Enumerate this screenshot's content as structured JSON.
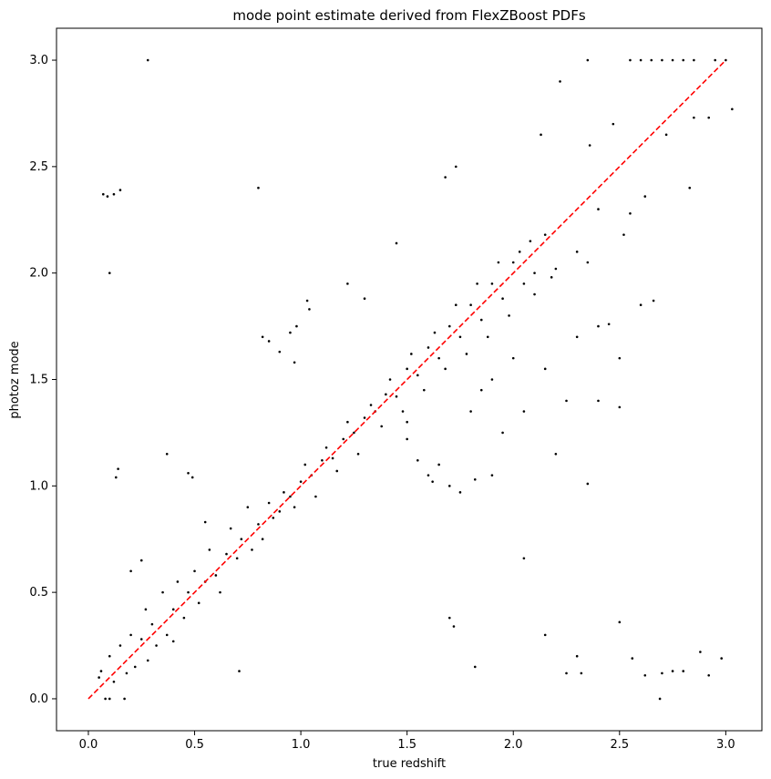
{
  "chart_data": {
    "type": "scatter",
    "title": "mode point estimate derived from FlexZBoost PDFs",
    "x_label": "true redshift",
    "y_label": "photoz mode",
    "color": "#000000",
    "x": [
      0.28,
      0.07,
      0.09,
      0.12,
      0.15,
      0.1,
      0.13,
      0.14,
      0.37,
      0.47,
      0.49,
      0.8,
      0.82,
      0.85,
      0.9,
      0.95,
      0.98,
      0.97,
      1.3,
      1.22,
      1.03,
      1.04,
      1.45,
      1.73,
      1.68,
      1.5,
      1.55,
      1.6,
      1.65,
      1.7,
      1.75,
      1.62,
      1.82,
      1.9,
      1.5,
      2.05,
      1.7,
      1.72,
      1.82,
      2.15,
      2.25,
      2.3,
      2.32,
      2.5,
      2.56,
      2.62,
      2.7,
      2.75,
      2.8,
      2.88,
      2.92,
      2.98,
      2.69,
      2.35,
      2.55,
      2.6,
      2.65,
      2.7,
      2.75,
      2.8,
      2.85,
      2.95,
      3.0,
      2.22,
      2.36,
      2.13,
      2.47,
      3.03,
      2.92,
      2.85,
      2.72,
      2.83,
      2.62,
      2.52,
      2.6,
      2.66,
      2.45,
      2.4,
      2.3,
      2.5,
      2.4,
      2.5,
      2.2,
      2.35,
      2.25,
      2.15,
      2.1,
      2.0,
      1.9,
      1.8,
      2.05,
      1.95,
      1.85,
      2.2,
      2.3,
      2.4,
      2.55,
      2.35,
      0.05,
      0.08,
      0.1,
      0.17,
      0.06,
      0.1,
      0.12,
      0.15,
      0.18,
      0.2,
      0.22,
      0.25,
      0.27,
      0.28,
      0.3,
      0.32,
      0.35,
      0.37,
      0.4,
      0.42,
      0.45,
      0.47,
      0.5,
      0.52,
      0.55,
      0.57,
      0.6,
      0.62,
      0.65,
      0.67,
      0.7,
      0.72,
      0.75,
      0.77,
      0.8,
      0.82,
      0.85,
      0.87,
      0.9,
      0.92,
      0.95,
      0.97,
      1.0,
      1.02,
      1.05,
      1.07,
      1.1,
      1.12,
      1.15,
      1.17,
      1.2,
      1.22,
      1.25,
      1.27,
      1.3,
      1.33,
      1.35,
      1.38,
      1.4,
      1.42,
      1.45,
      1.48,
      1.5,
      1.52,
      1.55,
      1.58,
      1.6,
      1.63,
      1.65,
      1.68,
      1.7,
      1.73,
      1.75,
      1.78,
      1.8,
      1.83,
      1.85,
      1.88,
      1.9,
      1.93,
      1.95,
      1.98,
      2.0,
      2.03,
      2.05,
      2.08,
      2.1,
      2.15,
      2.18,
      0.4,
      0.55,
      0.71,
      0.25,
      0.2
    ],
    "values": [
      3.0,
      2.37,
      2.36,
      2.37,
      2.39,
      2.0,
      1.04,
      1.08,
      1.15,
      1.06,
      1.04,
      2.4,
      1.7,
      1.68,
      1.63,
      1.72,
      1.75,
      1.58,
      1.88,
      1.95,
      1.87,
      1.83,
      2.14,
      2.5,
      2.45,
      1.3,
      1.12,
      1.05,
      1.1,
      1.0,
      0.97,
      1.02,
      1.03,
      1.05,
      1.22,
      0.66,
      0.38,
      0.34,
      0.15,
      0.3,
      0.12,
      0.2,
      0.12,
      0.36,
      0.19,
      0.11,
      0.12,
      0.13,
      0.13,
      0.22,
      0.11,
      0.19,
      0.0,
      3.0,
      3.0,
      3.0,
      3.0,
      3.0,
      3.0,
      3.0,
      3.0,
      3.0,
      3.0,
      2.9,
      2.6,
      2.65,
      2.7,
      2.77,
      2.73,
      2.73,
      2.65,
      2.4,
      2.36,
      2.18,
      1.85,
      1.87,
      1.76,
      1.75,
      1.7,
      1.6,
      1.4,
      1.37,
      1.15,
      1.01,
      1.4,
      1.55,
      1.9,
      1.6,
      1.5,
      1.35,
      1.35,
      1.25,
      1.45,
      2.02,
      2.1,
      2.3,
      2.28,
      2.05,
      0.1,
      0.0,
      0.0,
      0.0,
      0.13,
      0.2,
      0.08,
      0.25,
      0.12,
      0.3,
      0.15,
      0.28,
      0.42,
      0.18,
      0.35,
      0.25,
      0.5,
      0.3,
      0.42,
      0.55,
      0.38,
      0.5,
      0.6,
      0.45,
      0.55,
      0.7,
      0.58,
      0.5,
      0.68,
      0.8,
      0.66,
      0.75,
      0.9,
      0.7,
      0.82,
      0.75,
      0.92,
      0.85,
      0.88,
      0.97,
      0.95,
      0.9,
      1.02,
      1.1,
      1.05,
      0.95,
      1.12,
      1.18,
      1.13,
      1.07,
      1.22,
      1.3,
      1.25,
      1.15,
      1.32,
      1.38,
      1.35,
      1.28,
      1.43,
      1.5,
      1.42,
      1.35,
      1.55,
      1.62,
      1.52,
      1.45,
      1.65,
      1.72,
      1.6,
      1.55,
      1.75,
      1.85,
      1.7,
      1.62,
      1.85,
      1.95,
      1.78,
      1.7,
      1.95,
      2.05,
      1.88,
      1.8,
      2.05,
      2.1,
      1.95,
      2.15,
      2.0,
      2.18,
      1.98,
      0.27,
      0.83,
      0.13,
      0.65,
      0.6
    ],
    "reference_line": {
      "x": [
        0,
        3
      ],
      "values": [
        0,
        3
      ],
      "color": "#ff0000",
      "style": "dashed"
    },
    "xlim": [
      -0.15,
      3.17
    ],
    "ylim": [
      -0.15,
      3.15
    ],
    "xticks": [
      {
        "value": 0,
        "label": "0.0"
      },
      0.5,
      {
        "value": 1,
        "label": "1.0"
      },
      1.5,
      {
        "value": 2,
        "label": "2.0"
      },
      2.5,
      {
        "value": 3,
        "label": "3.0"
      }
    ],
    "yticks": [
      {
        "value": 0,
        "label": "0.0"
      },
      0.5,
      {
        "value": 1,
        "label": "1.0"
      },
      1.5,
      {
        "value": 2,
        "label": "2.0"
      },
      2.5,
      {
        "value": 3,
        "label": "3.0"
      }
    ]
  }
}
